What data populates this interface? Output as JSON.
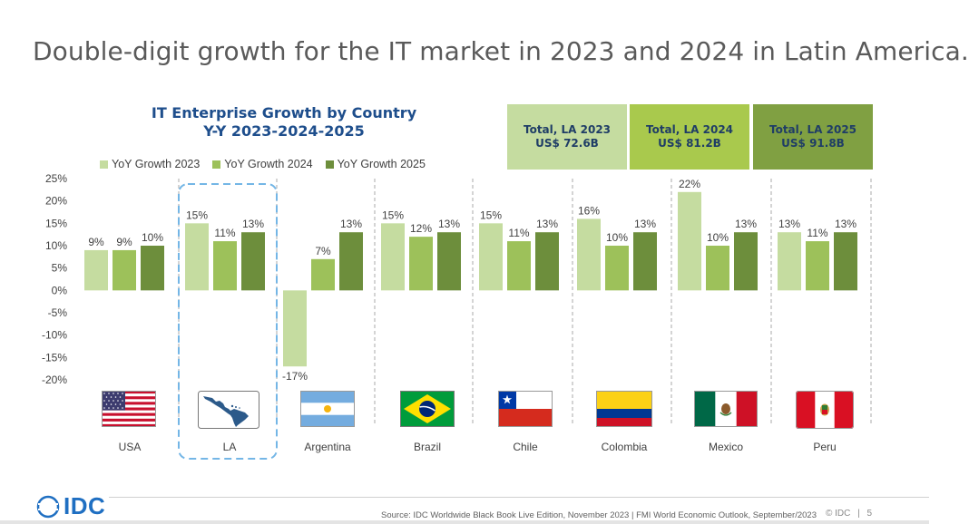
{
  "headline": "Double-digit growth for the IT market in 2023 and 2024 in Latin America.",
  "chart_title_line1": "IT Enterprise Growth by Country",
  "chart_title_line2": "Y-Y 2023-2024-2025",
  "totals": [
    {
      "label": "Total, LA 2023",
      "value": "US$ 72.6B",
      "color": "#c5dca0"
    },
    {
      "label": "Total, LA 2024",
      "value": "US$ 81.2B",
      "color": "#a9c94d"
    },
    {
      "label": "Total, LA 2025",
      "value": "US$ 91.8B",
      "color": "#80a042"
    }
  ],
  "chart_data": {
    "type": "bar",
    "categories": [
      "USA",
      "LA",
      "Argentina",
      "Brazil",
      "Chile",
      "Colombia",
      "Mexico",
      "Peru"
    ],
    "series": [
      {
        "name": "YoY Growth 2023",
        "color": "#c5dca0",
        "values": [
          9,
          15,
          -17,
          15,
          15,
          16,
          22,
          13
        ]
      },
      {
        "name": "YoY Growth 2024",
        "color": "#9dc15a",
        "values": [
          9,
          11,
          7,
          12,
          11,
          10,
          10,
          11
        ]
      },
      {
        "name": "YoY Growth 2025",
        "color": "#6d8e3c",
        "values": [
          10,
          13,
          13,
          13,
          13,
          13,
          13,
          13
        ]
      }
    ],
    "labels": [
      [
        "9%",
        "15%",
        "-17%",
        "15%",
        "15%",
        "16%",
        "22%",
        "13%"
      ],
      [
        "9%",
        "11%",
        "7%",
        "12%",
        "11%",
        "10%",
        "10%",
        "11%"
      ],
      [
        "10%",
        "13%",
        "13%",
        "13%",
        "13%",
        "13%",
        "13%",
        "13%"
      ]
    ],
    "ylim": [
      -20,
      25
    ],
    "yticks": [
      "25%",
      "20%",
      "15%",
      "10%",
      "5%",
      "0%",
      "-5%",
      "-10%",
      "-15%",
      "-20%"
    ],
    "highlighted_category": "LA",
    "legend_position": "top"
  },
  "footer": {
    "logo": "IDC",
    "source": "Source: IDC Worldwide Black Book Live Edition, November 2023 | FMI World Economic Outlook, September/2023",
    "copyright": "© IDC",
    "page": "5"
  }
}
